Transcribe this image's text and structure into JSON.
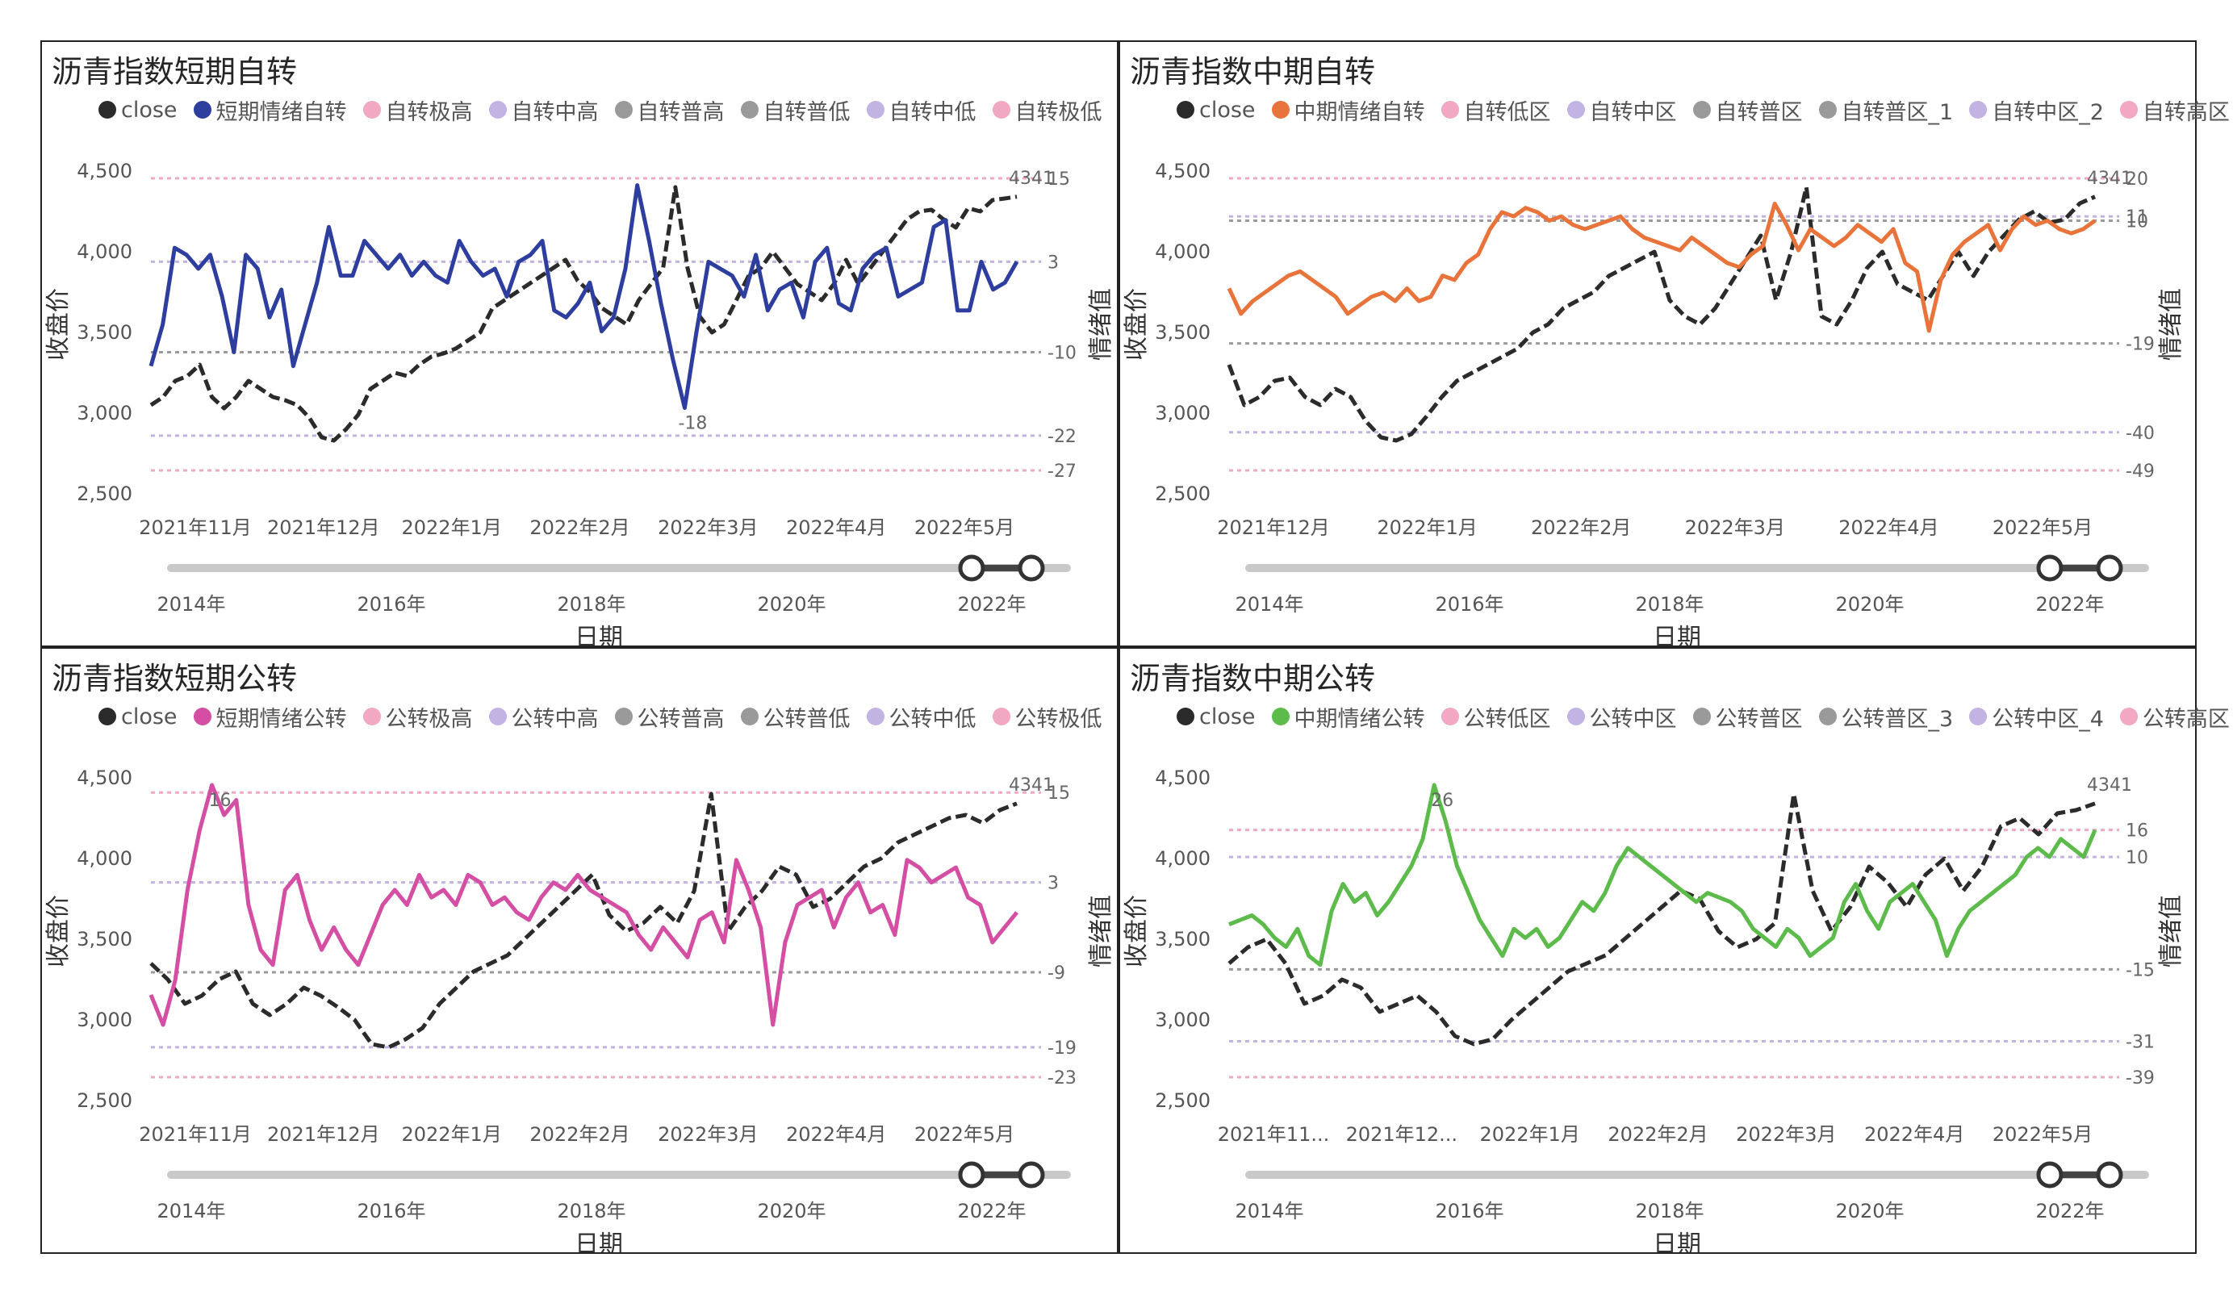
{
  "page": {
    "background": "#ffffff"
  },
  "common": {
    "y_left_title": "收盘价",
    "y_right_title": "情绪值",
    "x_title": "日期",
    "y_ticks": [
      "4,500",
      "4,000",
      "3,500",
      "3,000",
      "2,500"
    ],
    "x_ticks": [
      "2021年11月",
      "2021年12月",
      "2022年1月",
      "2022年2月",
      "2022年3月",
      "2022年4月",
      "2022年5月"
    ],
    "slider_years": [
      "2014年",
      "2016年",
      "2018年",
      "2020年",
      "2022年"
    ],
    "close_color": "#2b2b2b"
  },
  "chart_data": [
    {
      "type": "line",
      "title": "沥青指数短期自转",
      "legend": [
        "close",
        "短期情绪自转",
        "自转极高",
        "自转中高",
        "自转普高",
        "自转普低",
        "自转中低",
        "自转极低"
      ],
      "colors": {
        "sentiment": "#2e3e9e",
        "legend_dots": [
          "#2b2b2b",
          "#2e3e9e",
          "#f2a7c3",
          "#c2b3e3",
          "#9a9a9a",
          "#9a9a9a",
          "#c2b3e3",
          "#f2a7c3"
        ]
      },
      "x_ticks": [
        "2021年11月",
        "2021年12月",
        "2022年1月",
        "2022年2月",
        "2022年3月",
        "2022年4月",
        "2022年5月"
      ],
      "close_last_label": "4341",
      "sentiment": [
        -12,
        -6,
        5,
        4,
        2,
        4,
        -2,
        -10,
        4,
        2,
        -5,
        -1,
        -12,
        -6,
        0,
        8,
        1,
        1,
        6,
        4,
        2,
        4,
        1,
        3,
        1,
        0,
        6,
        3,
        1,
        2,
        -2,
        3,
        4,
        6,
        -4,
        -5,
        -3,
        0,
        -7,
        -5,
        2,
        14,
        6,
        -3,
        -11,
        -18,
        -7,
        3,
        2,
        1,
        -2,
        4,
        -4,
        -1,
        0,
        -5,
        3,
        5,
        -3,
        -4,
        2,
        4,
        5,
        -2,
        -1,
        0,
        8,
        9,
        -4,
        -4,
        3,
        -1,
        0,
        3
      ],
      "close": [
        3050,
        3100,
        3200,
        3230,
        3300,
        3100,
        3030,
        3100,
        3200,
        3150,
        3100,
        3080,
        3050,
        2970,
        2850,
        2830,
        2900,
        2990,
        3150,
        3200,
        3250,
        3230,
        3300,
        3350,
        3370,
        3400,
        3450,
        3500,
        3650,
        3700,
        3750,
        3800,
        3850,
        3900,
        3950,
        3820,
        3750,
        3650,
        3600,
        3550,
        3700,
        3800,
        3900,
        4400,
        3900,
        3600,
        3500,
        3550,
        3700,
        3850,
        3900,
        4000,
        3900,
        3800,
        3750,
        3700,
        3800,
        3950,
        3800,
        3900,
        4000,
        4100,
        4200,
        4250,
        4260,
        4200,
        4150,
        4270,
        4250,
        4320,
        4330,
        4341
      ],
      "bands": [
        {
          "label": "15",
          "value": 15,
          "color": "#f2a7c3"
        },
        {
          "label": "3",
          "value": 3,
          "color": "#c2b3e3"
        },
        {
          "label": "-10",
          "value": -10,
          "color": "#9a9a9a"
        },
        {
          "label": "-22",
          "value": -22,
          "color": "#c2b3e3"
        },
        {
          "label": "-27",
          "value": -27,
          "color": "#f2a7c3"
        }
      ],
      "point_labels": [
        {
          "label": "-18",
          "series_index": 45
        }
      ]
    },
    {
      "type": "line",
      "title": "沥青指数中期自转",
      "legend": [
        "close",
        "中期情绪自转",
        "自转低区",
        "自转中区",
        "自转普区",
        "自转普区_1",
        "自转中区_2",
        "自转高区"
      ],
      "colors": {
        "sentiment": "#e8743b",
        "legend_dots": [
          "#2b2b2b",
          "#e8743b",
          "#f2a7c3",
          "#c2b3e3",
          "#9a9a9a",
          "#9a9a9a",
          "#c2b3e3",
          "#f2a7c3"
        ]
      },
      "x_ticks": [
        "2021年12月",
        "2022年1月",
        "2022年2月",
        "2022年3月",
        "2022年4月",
        "2022年5月"
      ],
      "close_last_label": "4341",
      "sentiment": [
        -6,
        -12,
        -9,
        -7,
        -5,
        -3,
        -2,
        -4,
        -6,
        -8,
        -12,
        -10,
        -8,
        -7,
        -9,
        -6,
        -9,
        -8,
        -3,
        -4,
        0,
        2,
        8,
        12,
        11,
        13,
        12,
        10,
        11,
        9,
        8,
        9,
        10,
        11,
        8,
        6,
        5,
        4,
        3,
        6,
        4,
        2,
        0,
        -1,
        2,
        4,
        14,
        9,
        3,
        8,
        6,
        4,
        6,
        9,
        7,
        5,
        8,
        0,
        -2,
        -16,
        -4,
        2,
        5,
        7,
        9,
        3,
        8,
        11,
        9,
        10,
        8,
        7,
        8,
        10
      ],
      "close": [
        3300,
        3050,
        3100,
        3200,
        3220,
        3100,
        3050,
        3150,
        3100,
        2950,
        2850,
        2830,
        2870,
        2980,
        3100,
        3200,
        3250,
        3300,
        3350,
        3400,
        3500,
        3550,
        3650,
        3700,
        3750,
        3850,
        3900,
        3950,
        4000,
        3700,
        3600,
        3550,
        3650,
        3800,
        3950,
        4100,
        3700,
        4000,
        4400,
        3600,
        3550,
        3700,
        3900,
        4000,
        3800,
        3750,
        3700,
        3850,
        4000,
        3850,
        4000,
        4100,
        4200,
        4250,
        4180,
        4200,
        4300,
        4341
      ],
      "bands": [
        {
          "label": "20",
          "value": 20,
          "color": "#f2a7c3"
        },
        {
          "label": "11",
          "value": 11,
          "color": "#c2b3e3"
        },
        {
          "label": "10",
          "value": 10,
          "color": "#9a9a9a"
        },
        {
          "label": "-19",
          "value": -19,
          "color": "#9a9a9a"
        },
        {
          "label": "-40",
          "value": -40,
          "color": "#c2b3e3"
        },
        {
          "label": "-49",
          "value": -49,
          "color": "#f2a7c3"
        }
      ],
      "point_labels": []
    },
    {
      "type": "line",
      "title": "沥青指数短期公转",
      "legend": [
        "close",
        "短期情绪公转",
        "公转极高",
        "公转中高",
        "公转普高",
        "公转普低",
        "公转中低",
        "公转极低"
      ],
      "colors": {
        "sentiment": "#d44fa3",
        "legend_dots": [
          "#2b2b2b",
          "#d44fa3",
          "#f2a7c3",
          "#c2b3e3",
          "#9a9a9a",
          "#9a9a9a",
          "#c2b3e3",
          "#f2a7c3"
        ]
      },
      "x_ticks": [
        "2021年11月",
        "2021年12月",
        "2022年1月",
        "2022年2月",
        "2022年3月",
        "2022年4月",
        "2022年5月"
      ],
      "close_last_label": "4341",
      "sentiment": [
        -12,
        -16,
        -10,
        2,
        10,
        16,
        12,
        14,
        0,
        -6,
        -8,
        2,
        4,
        -2,
        -6,
        -3,
        -6,
        -8,
        -4,
        0,
        2,
        0,
        4,
        1,
        2,
        0,
        4,
        3,
        0,
        1,
        -1,
        -2,
        1,
        3,
        2,
        4,
        2,
        1,
        0,
        -1,
        -4,
        -6,
        -3,
        -5,
        -7,
        -2,
        -1,
        -5,
        6,
        2,
        -3,
        -16,
        -5,
        0,
        1,
        2,
        -3,
        1,
        3,
        -1,
        0,
        -4,
        6,
        5,
        3,
        4,
        5,
        1,
        0,
        -5,
        -3,
        -1
      ],
      "close": [
        3350,
        3250,
        3100,
        3150,
        3250,
        3300,
        3100,
        3030,
        3100,
        3200,
        3150,
        3080,
        3000,
        2850,
        2830,
        2880,
        2950,
        3100,
        3200,
        3300,
        3350,
        3400,
        3500,
        3600,
        3700,
        3800,
        3900,
        3650,
        3550,
        3600,
        3700,
        3600,
        3800,
        4400,
        3550,
        3700,
        3800,
        3950,
        3900,
        3700,
        3750,
        3850,
        3950,
        4000,
        4100,
        4150,
        4200,
        4250,
        4270,
        4220,
        4300,
        4341
      ],
      "bands": [
        {
          "label": "15",
          "value": 15,
          "color": "#f2a7c3"
        },
        {
          "label": "3",
          "value": 3,
          "color": "#c2b3e3"
        },
        {
          "label": "-9",
          "value": -9,
          "color": "#9a9a9a"
        },
        {
          "label": "-19",
          "value": -19,
          "color": "#c2b3e3"
        },
        {
          "label": "-23",
          "value": -23,
          "color": "#f2a7c3"
        }
      ],
      "point_labels": [
        {
          "label": "16",
          "series_index": 5
        }
      ]
    },
    {
      "type": "line",
      "title": "沥青指数中期公转",
      "legend": [
        "close",
        "中期情绪公转",
        "公转低区",
        "公转中区",
        "公转普区",
        "公转普区_3",
        "公转中区_4",
        "公转高区"
      ],
      "colors": {
        "sentiment": "#5cbb4a",
        "legend_dots": [
          "#2b2b2b",
          "#5cbb4a",
          "#f2a7c3",
          "#c2b3e3",
          "#9a9a9a",
          "#9a9a9a",
          "#c2b3e3",
          "#f2a7c3"
        ]
      },
      "x_ticks": [
        "2021年11...",
        "2021年12...",
        "2022年1月",
        "2022年2月",
        "2022年3月",
        "2022年4月",
        "2022年5月"
      ],
      "close_last_label": "4341",
      "sentiment": [
        -5,
        -4,
        -3,
        -5,
        -8,
        -10,
        -6,
        -12,
        -14,
        -2,
        4,
        0,
        2,
        -3,
        0,
        4,
        8,
        14,
        26,
        18,
        8,
        2,
        -4,
        -8,
        -12,
        -6,
        -8,
        -6,
        -10,
        -8,
        -4,
        0,
        -2,
        2,
        8,
        12,
        10,
        8,
        6,
        4,
        2,
        0,
        2,
        1,
        0,
        -2,
        -6,
        -8,
        -10,
        -6,
        -8,
        -12,
        -10,
        -8,
        0,
        4,
        -2,
        -6,
        0,
        2,
        4,
        0,
        -4,
        -12,
        -6,
        -2,
        0,
        2,
        4,
        6,
        10,
        12,
        10,
        14,
        12,
        10,
        16
      ],
      "close": [
        3350,
        3450,
        3500,
        3350,
        3100,
        3150,
        3250,
        3200,
        3050,
        3100,
        3150,
        3050,
        2900,
        2850,
        2880,
        3000,
        3100,
        3200,
        3300,
        3350,
        3400,
        3500,
        3600,
        3700,
        3800,
        3750,
        3550,
        3450,
        3500,
        3600,
        4400,
        3800,
        3550,
        3700,
        3950,
        3850,
        3700,
        3900,
        4000,
        3800,
        3950,
        4200,
        4250,
        4150,
        4280,
        4300,
        4341
      ],
      "bands": [
        {
          "label": "16",
          "value": 16,
          "color": "#f2a7c3"
        },
        {
          "label": "10",
          "value": 10,
          "color": "#c2b3e3"
        },
        {
          "label": "-15",
          "value": -15,
          "color": "#9a9a9a"
        },
        {
          "label": "-31",
          "value": -31,
          "color": "#c2b3e3"
        },
        {
          "label": "-39",
          "value": -39,
          "color": "#f2a7c3"
        }
      ],
      "point_labels": [
        {
          "label": "26",
          "series_index": 18
        }
      ]
    }
  ]
}
